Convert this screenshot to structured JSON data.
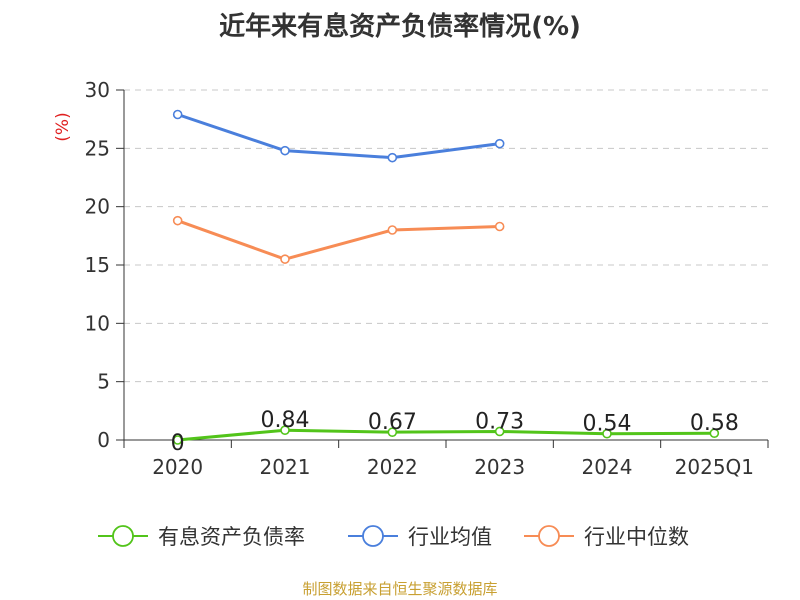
{
  "chart_data": {
    "type": "line",
    "title": "近年来有息资产负债率情况(%)",
    "ylabel": "(%)",
    "categories": [
      "2020",
      "2021",
      "2022",
      "2023",
      "2024",
      "2025Q1"
    ],
    "ylim": [
      0,
      30
    ],
    "yticks": [
      0,
      5,
      10,
      15,
      20,
      25,
      30
    ],
    "grid": "horizontal-dashed",
    "legend_position": "bottom",
    "series": [
      {
        "name": "有息资产负债率",
        "color": "#52c41a",
        "values": [
          0,
          0.84,
          0.67,
          0.73,
          0.54,
          0.58
        ],
        "data_labels": [
          "0",
          "0.84",
          "0.67",
          "0.73",
          "0.54",
          "0.58"
        ]
      },
      {
        "name": "行业均值",
        "color": "#4a7fdc",
        "values": [
          27.9,
          24.8,
          24.2,
          25.4,
          null,
          null
        ]
      },
      {
        "name": "行业中位数",
        "color": "#f78c55",
        "values": [
          18.8,
          15.5,
          18.0,
          18.3,
          null,
          null
        ]
      }
    ]
  },
  "footer": {
    "source": "制图数据来自恒生聚源数据库"
  }
}
